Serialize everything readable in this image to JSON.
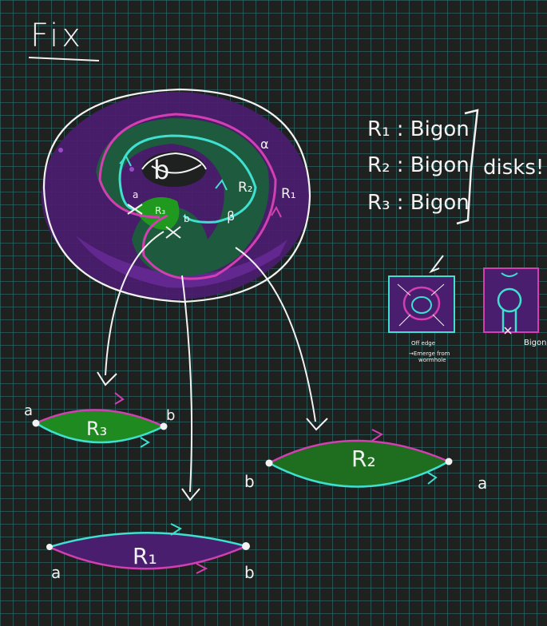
{
  "title": "Fix",
  "torus_labels": {
    "alpha": "α",
    "beta": "β",
    "b_center": "b",
    "r2": "R₂",
    "r1": "R₁",
    "r3": "R₃",
    "a": "a",
    "b": "b"
  },
  "legend": {
    "lines": [
      "R₁ : Bigon",
      "R₂ : Bigon",
      "R₃ : Bigon"
    ],
    "brace_label": "disks!"
  },
  "mini_diagrams": {
    "left_note_1": "Off edge",
    "left_note_2": "→Emerge from",
    "left_note_3": "wormhole",
    "right_label": "Bigon"
  },
  "bigons": {
    "r3": {
      "label": "R₃",
      "left": "a",
      "right": "b"
    },
    "r2": {
      "label": "R₂",
      "left": "b",
      "right": "a"
    },
    "r1": {
      "label": "R₁",
      "left": "a",
      "right": "b"
    }
  },
  "colors": {
    "background": "#1e2120",
    "grid": "#2e7874",
    "magenta": "#d23fb0",
    "cyan": "#3fe0d0",
    "green": "#1f7a1f",
    "purple": "#4a1e6e",
    "white": "#f2f2f2"
  }
}
